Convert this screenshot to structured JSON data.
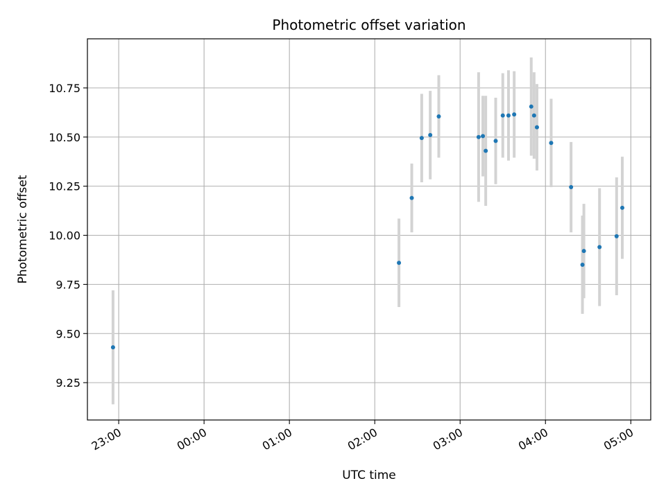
{
  "chart_data": {
    "type": "scatter",
    "title": "Photometric offset variation",
    "xlabel": "UTC time",
    "ylabel": "Photometric offset",
    "xlim": [
      "22:38",
      "05:14"
    ],
    "ylim": [
      9.06,
      11.0
    ],
    "grid": true,
    "x_ticks": [
      "23:00",
      "00:00",
      "01:00",
      "02:00",
      "03:00",
      "04:00",
      "05:00"
    ],
    "y_ticks": [
      "9.25",
      "9.50",
      "9.75",
      "10.00",
      "10.25",
      "10.50",
      "10.75"
    ],
    "colors": {
      "point": "#1f77b4",
      "error_bar": "#d3d3d3",
      "grid": "#b0b0b0"
    },
    "points": [
      {
        "t": "22:56",
        "y": 9.43,
        "err": 0.29
      },
      {
        "t": "02:17",
        "y": 9.86,
        "err": 0.225
      },
      {
        "t": "02:26",
        "y": 10.19,
        "err": 0.175
      },
      {
        "t": "02:33",
        "y": 10.495,
        "err": 0.225
      },
      {
        "t": "02:39",
        "y": 10.51,
        "err": 0.225
      },
      {
        "t": "02:45",
        "y": 10.605,
        "err": 0.21
      },
      {
        "t": "03:13",
        "y": 10.5,
        "err": 0.33
      },
      {
        "t": "03:16",
        "y": 10.505,
        "err": 0.205
      },
      {
        "t": "03:18",
        "y": 10.43,
        "err": 0.28
      },
      {
        "t": "03:25",
        "y": 10.48,
        "err": 0.22
      },
      {
        "t": "03:30",
        "y": 10.61,
        "err": 0.215
      },
      {
        "t": "03:34",
        "y": 10.61,
        "err": 0.23
      },
      {
        "t": "03:38",
        "y": 10.615,
        "err": 0.22
      },
      {
        "t": "03:50",
        "y": 10.655,
        "err": 0.25
      },
      {
        "t": "03:52",
        "y": 10.61,
        "err": 0.22
      },
      {
        "t": "03:54",
        "y": 10.55,
        "err": 0.22
      },
      {
        "t": "04:04",
        "y": 10.47,
        "err": 0.225
      },
      {
        "t": "04:18",
        "y": 10.245,
        "err": 0.23
      },
      {
        "t": "04:26",
        "y": 9.85,
        "err": 0.25
      },
      {
        "t": "04:27",
        "y": 9.92,
        "err": 0.24
      },
      {
        "t": "04:38",
        "y": 9.94,
        "err": 0.3
      },
      {
        "t": "04:50",
        "y": 9.995,
        "err": 0.3
      },
      {
        "t": "04:54",
        "y": 10.14,
        "err": 0.26
      }
    ]
  }
}
